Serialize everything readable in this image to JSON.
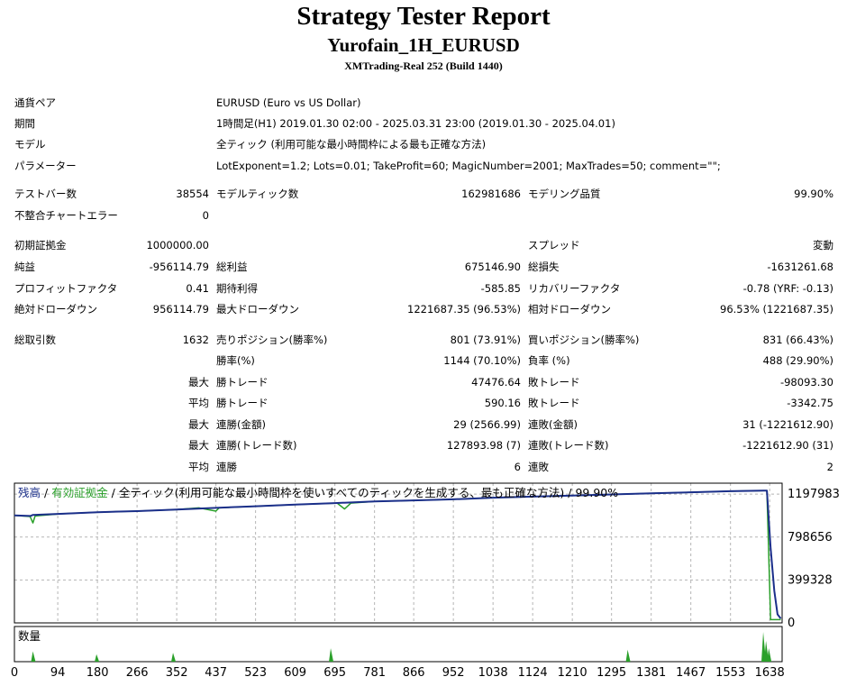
{
  "header": {
    "title": "Strategy Tester Report",
    "ea": "Yurofain_1H_EURUSD",
    "server": "XMTrading-Real 252 (Build 1440)"
  },
  "settings": [
    {
      "label": "通貨ペア",
      "value": "EURUSD (Euro vs US Dollar)"
    },
    {
      "label": "期間",
      "value": "1時間足(H1) 2019.01.30 02:00 - 2025.03.31 23:00 (2019.01.30 - 2025.04.01)"
    },
    {
      "label": "モデル",
      "value": "全ティック (利用可能な最小時間枠による最も正確な方法)"
    },
    {
      "label": "パラメーター",
      "value": "LotExponent=1.2; Lots=0.01; TakeProfit=60; MagicNumber=2001; MaxTrades=50; comment=\"\";"
    }
  ],
  "stats": {
    "bars_label": "テストバー数",
    "bars": "38554",
    "ticks_label": "モデルティック数",
    "ticks": "162981686",
    "quality_label": "モデリング品質",
    "quality": "99.90%",
    "mismatch_label": "不整合チャートエラー",
    "mismatch": "0",
    "deposit_label": "初期証拠金",
    "deposit": "1000000.00",
    "spread_label": "スプレッド",
    "spread": "変動",
    "net_label": "純益",
    "net": "-956114.79",
    "gross_profit_label": "総利益",
    "gross_profit": "675146.90",
    "gross_loss_label": "総損失",
    "gross_loss": "-1631261.68",
    "pf_label": "プロフィットファクタ",
    "pf": "0.41",
    "expected_label": "期待利得",
    "expected": "-585.85",
    "recovery_label": "リカバリーファクタ",
    "recovery": "-0.78 (YRF: -0.13)",
    "abs_dd_label": "絶対ドローダウン",
    "abs_dd": "956114.79",
    "max_dd_label": "最大ドローダウン",
    "max_dd": "1221687.35 (96.53%)",
    "rel_dd_label": "相対ドローダウン",
    "rel_dd": "96.53% (1221687.35)",
    "trades_label": "総取引数",
    "trades": "1632",
    "short_label": "売りポジション(勝率%)",
    "short": "801 (73.91%)",
    "long_label": "買いポジション(勝率%)",
    "long": "831 (66.43%)",
    "win_label": "勝率(%)",
    "win": "1144 (70.10%)",
    "loss_label": "負率 (%)",
    "loss": "488 (29.90%)",
    "max_word": "最大",
    "avg_word": "平均",
    "largest_win_label": "勝トレード",
    "largest_win": "47476.64",
    "largest_loss_label": "敗トレード",
    "largest_loss": "-98093.30",
    "avg_win_label": "勝トレード",
    "avg_win": "590.16",
    "avg_loss_label": "敗トレード",
    "avg_loss": "-3342.75",
    "max_cons_wins_label": "連勝(金額)",
    "max_cons_wins": "29 (2566.99)",
    "max_cons_losses_label": "連敗(金額)",
    "max_cons_losses": "31 (-1221612.90)",
    "max_cons_profit_label": "連勝(トレード数)",
    "max_cons_profit": "127893.98 (7)",
    "max_cons_loss_label": "連敗(トレード数)",
    "max_cons_loss": "-1221612.90 (31)",
    "avg_cons_wins_label": "連勝",
    "avg_cons_wins": "6",
    "avg_cons_losses_label": "連敗",
    "avg_cons_losses": "2"
  },
  "chart_data": {
    "type": "line",
    "legend": {
      "balance": "残高",
      "sep1": " / ",
      "equity": "有効証拠金",
      "sep2": " / ",
      "model": "全ティック(利用可能な最小時間枠を使いすべてのティックを生成する、最も正確な方法)",
      "sep3": " / ",
      "quality": "99.90%"
    },
    "y_ticks": [
      1197983,
      798656,
      399328,
      0
    ],
    "ylim": [
      0,
      1300000
    ],
    "x_ticks": [
      0,
      94,
      180,
      266,
      352,
      437,
      523,
      609,
      695,
      781,
      866,
      952,
      1038,
      1124,
      1210,
      1295,
      1381,
      1467,
      1553,
      1638
    ],
    "xlim": [
      0,
      1665
    ],
    "volume_label": "数量",
    "colors": {
      "balance": "#1b2f8a",
      "equity": "#2aa02a",
      "grid": "#b5b5b5",
      "volume": "#2aa02a"
    },
    "series": [
      {
        "name": "残高",
        "values": [
          [
            0,
            1000000
          ],
          [
            35,
            995000
          ],
          [
            40,
            1005000
          ],
          [
            100,
            1015000
          ],
          [
            180,
            1030000
          ],
          [
            266,
            1040000
          ],
          [
            352,
            1055000
          ],
          [
            437,
            1070000
          ],
          [
            523,
            1085000
          ],
          [
            609,
            1100000
          ],
          [
            695,
            1115000
          ],
          [
            781,
            1130000
          ],
          [
            866,
            1140000
          ],
          [
            952,
            1150000
          ],
          [
            1038,
            1165000
          ],
          [
            1124,
            1175000
          ],
          [
            1210,
            1185000
          ],
          [
            1295,
            1195000
          ],
          [
            1381,
            1205000
          ],
          [
            1467,
            1215000
          ],
          [
            1553,
            1225000
          ],
          [
            1625,
            1230000
          ],
          [
            1632,
            1230000
          ],
          [
            1640,
            700000
          ],
          [
            1648,
            300000
          ],
          [
            1655,
            80000
          ],
          [
            1662,
            40000
          ]
        ]
      },
      {
        "name": "有効証拠金",
        "values": [
          [
            0,
            1000000
          ],
          [
            34,
            990000
          ],
          [
            40,
            930000
          ],
          [
            45,
            995000
          ],
          [
            100,
            1015000
          ],
          [
            180,
            1030000
          ],
          [
            266,
            1040000
          ],
          [
            352,
            1055000
          ],
          [
            400,
            1070000
          ],
          [
            437,
            1040000
          ],
          [
            444,
            1070000
          ],
          [
            523,
            1085000
          ],
          [
            609,
            1100000
          ],
          [
            700,
            1115000
          ],
          [
            716,
            1060000
          ],
          [
            730,
            1115000
          ],
          [
            781,
            1130000
          ],
          [
            866,
            1140000
          ],
          [
            952,
            1150000
          ],
          [
            1038,
            1165000
          ],
          [
            1124,
            1175000
          ],
          [
            1210,
            1185000
          ],
          [
            1295,
            1195000
          ],
          [
            1381,
            1205000
          ],
          [
            1467,
            1215000
          ],
          [
            1553,
            1225000
          ],
          [
            1625,
            1230000
          ],
          [
            1632,
            1230000
          ],
          [
            1640,
            30000
          ],
          [
            1662,
            30000
          ]
        ]
      }
    ],
    "volume": [
      [
        40,
        0.35
      ],
      [
        178,
        0.25
      ],
      [
        344,
        0.3
      ],
      [
        686,
        0.45
      ],
      [
        1330,
        0.4
      ],
      [
        1624,
        1.0
      ],
      [
        1630,
        0.7
      ],
      [
        1636,
        0.45
      ]
    ]
  }
}
